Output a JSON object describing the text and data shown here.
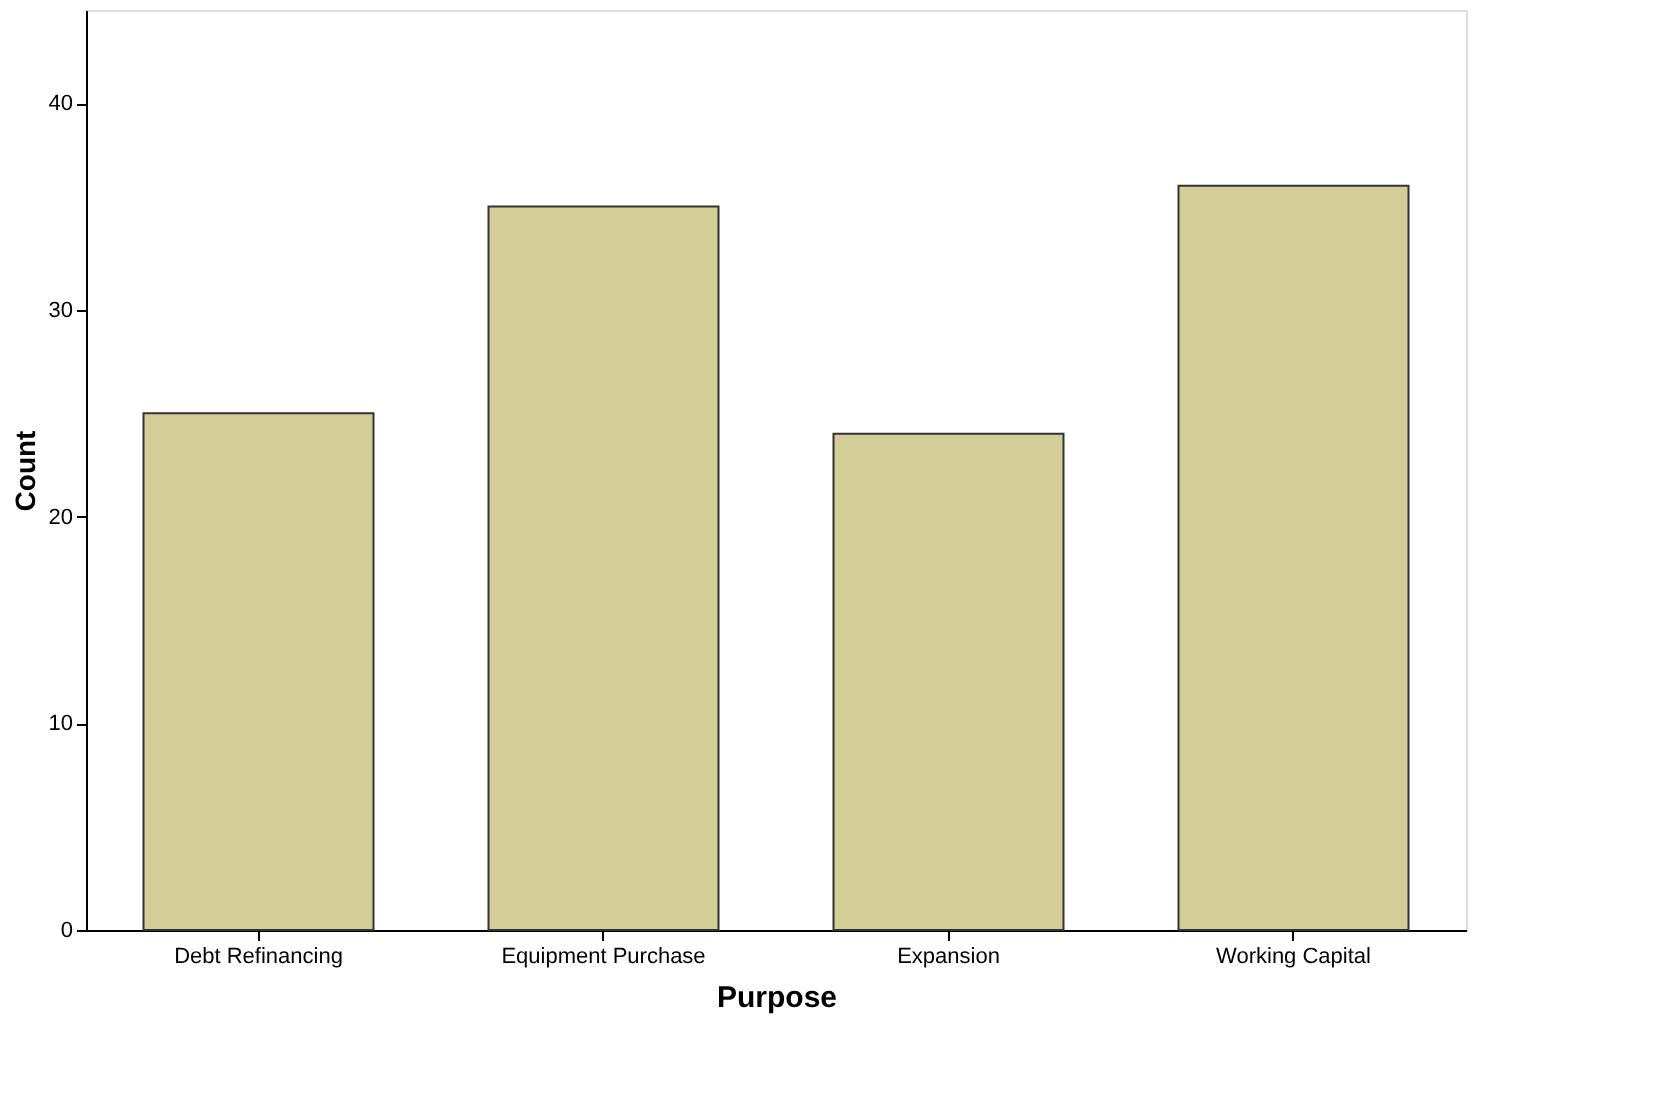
{
  "chart_data": {
    "type": "bar",
    "xlabel": "Purpose",
    "ylabel": "Count",
    "categories": [
      "Debt Refinancing",
      "Equipment Purchase",
      "Expansion",
      "Working Capital"
    ],
    "values": [
      25,
      35,
      24,
      36
    ],
    "color": "#d3ce97",
    "ylim": [
      0,
      44.5
    ],
    "yticks": [
      0,
      10,
      20,
      30,
      40
    ],
    "grid": false
  }
}
